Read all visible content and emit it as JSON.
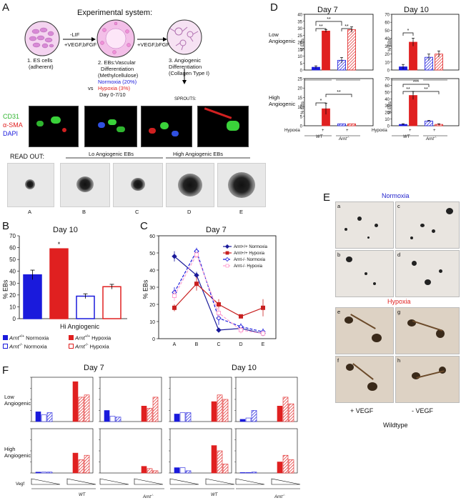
{
  "panels": {
    "a": "A",
    "b": "B",
    "c": "C",
    "d": "D",
    "e": "E",
    "f": "F"
  },
  "panel_a": {
    "title": "Experimental system:",
    "step1": [
      "1. ES cells",
      "(adherent)"
    ],
    "arrow1_top": "-LIF",
    "arrow1_bottom": "+VEGF,bFGF",
    "step2": [
      "2. EBs:Vascular",
      "Differentiation",
      "(Methylcellulose)"
    ],
    "normoxia": "Normoxia (20%)",
    "vs": "vs",
    "hypoxia": "Hypoxia (3%)",
    "day": "Day 0-7/10",
    "arrow2": "+VEGF,bFGF",
    "step3": [
      "3. Angiogenic",
      "Differentiation",
      "(Collagen Type I)"
    ],
    "sprouts": "SPROUTS:",
    "stain_cd31": "CD31",
    "stain_sma": "α-SMA",
    "stain_dapi": "DAPI",
    "readout": "READ OUT:",
    "lo_header": "Lo Angiogenic EBs",
    "hi_header": "High Angiogenic EBs",
    "eb_labels": [
      "A",
      "B",
      "C",
      "D",
      "E"
    ]
  },
  "panel_b": {
    "title": "Day 10",
    "ylabel": "% EBs",
    "xlabel": "Hi Angiogenic",
    "star": "*",
    "legend": [
      {
        "geno": "Arnt",
        "sup": "+/+",
        "cond": "Normoxia",
        "color": "#1a1adc",
        "fill": true
      },
      {
        "geno": "Arnt",
        "sup": "+/+",
        "cond": "Hypoxia",
        "color": "#e02020",
        "fill": true
      },
      {
        "geno": "Arnt",
        "sup": "-/-",
        "cond": "Normoxia",
        "color": "#1a1adc",
        "fill": false
      },
      {
        "geno": "Arnt",
        "sup": "-/-",
        "cond": "Hypoxia",
        "color": "#e02020",
        "fill": false
      }
    ]
  },
  "panel_c": {
    "title": "Day 7",
    "ylabel": "% EBs",
    "legend": [
      "Arnt+/+ Normoxia",
      "Arnt+/+ Hypoxia",
      "Arnt-/-  Normoxia",
      "Arnt-/-   Hypoxia"
    ]
  },
  "panel_d": {
    "day7": "Day 7",
    "day10": "Day 10",
    "row1": [
      "Low",
      "Angiogenic"
    ],
    "row2": [
      "High",
      "Angiogenic"
    ],
    "ylabel": "% EBs",
    "hypoxia": "Hypoxia",
    "plus": "+",
    "wt": "WT",
    "arnt": "Arnt",
    "arnt_sup": "-/-",
    "stars": [
      "**",
      "**",
      "**",
      "*",
      "*",
      "**",
      "*",
      "***",
      "**",
      "**"
    ]
  },
  "panel_e": {
    "normoxia": "Normoxia",
    "hypoxia": "Hypoxia",
    "photo_labels": [
      "a",
      "c",
      "b",
      "d",
      "e",
      "g",
      "f",
      "h"
    ],
    "plus_vegf": "+ VEGF",
    "minus_vegf": "- VEGF",
    "wildtype": "Wildtype"
  },
  "panel_f": {
    "day7": "Day 7",
    "day10": "Day 10",
    "row1": [
      "Low",
      "Angiogenic"
    ],
    "row2": [
      "High",
      "Angiogenic"
    ],
    "ylabel": "% EBs",
    "vegf": "Vegf",
    "wt": "WT",
    "arnt": "Arnt",
    "arnt_sup": "-/-"
  },
  "colors": {
    "blue": "#1a1adc",
    "red": "#e02020",
    "pink": "#ff9fd0",
    "green": "#3ad23a"
  },
  "chart_data": [
    {
      "id": "B",
      "type": "bar",
      "title": "Day 10",
      "xlabel": "Hi Angiogenic",
      "ylabel": "% EBs",
      "ylim": [
        0,
        70
      ],
      "yticks": [
        0,
        10,
        20,
        30,
        40,
        50,
        60,
        70
      ],
      "categories": [
        "Arnt+/+ Normoxia",
        "Arnt+/+ Hypoxia",
        "Arnt-/- Normoxia",
        "Arnt-/- Hypoxia"
      ],
      "values": [
        37,
        59,
        19,
        27
      ],
      "errors": [
        4,
        0,
        2,
        2
      ],
      "significance": [
        "",
        "*",
        "",
        ""
      ]
    },
    {
      "id": "C",
      "type": "line",
      "title": "Day 7",
      "ylabel": "% EBs",
      "ylim": [
        0,
        60
      ],
      "yticks": [
        0,
        10,
        20,
        30,
        40,
        50,
        60
      ],
      "x": [
        "A",
        "B",
        "C",
        "D",
        "E"
      ],
      "series": [
        {
          "name": "Arnt+/+ Normoxia",
          "values": [
            48,
            37,
            5,
            6,
            3
          ],
          "errors": [
            3,
            2,
            1,
            2,
            1
          ]
        },
        {
          "name": "Arnt+/+ Hypoxia",
          "values": [
            18,
            32,
            20,
            13,
            18
          ],
          "errors": [
            2,
            4,
            3,
            1,
            5
          ]
        },
        {
          "name": "Arnt-/-  Normoxia",
          "values": [
            27,
            51,
            12,
            7,
            4
          ],
          "errors": [
            3,
            2,
            4,
            2,
            2
          ]
        },
        {
          "name": "Arnt-/-   Hypoxia",
          "values": [
            25,
            49,
            15,
            5,
            3
          ],
          "errors": [
            3,
            2,
            3,
            2,
            1
          ]
        }
      ]
    },
    {
      "id": "D-day7-low",
      "type": "bar",
      "ylim": [
        0,
        40
      ],
      "yticks": [
        0,
        5,
        10,
        15,
        20,
        25,
        30,
        35,
        40
      ],
      "groups": [
        "WT",
        "Arnt-/-"
      ],
      "hypoxia": [
        "-",
        "+",
        "-",
        "+"
      ],
      "values": [
        2,
        28,
        7,
        29
      ],
      "errors": [
        1,
        1,
        2,
        2
      ]
    },
    {
      "id": "D-day10-low",
      "type": "bar",
      "ylim": [
        0,
        70
      ],
      "yticks": [
        0,
        10,
        20,
        30,
        40,
        50,
        60,
        70
      ],
      "groups": [
        "WT",
        "Arnt-/-"
      ],
      "hypoxia": [
        "-",
        "+",
        "-",
        "+"
      ],
      "values": [
        4,
        35,
        16,
        20
      ],
      "errors": [
        3,
        5,
        4,
        4
      ]
    },
    {
      "id": "D-day7-high",
      "type": "bar",
      "ylim": [
        0,
        25
      ],
      "yticks": [
        0,
        5,
        10,
        15,
        20,
        25
      ],
      "groups": [
        "WT",
        "Arnt-/-"
      ],
      "hypoxia": [
        "-",
        "+",
        "-",
        "+"
      ],
      "values": [
        0,
        9,
        1,
        1
      ],
      "errors": [
        0,
        3,
        0,
        0
      ]
    },
    {
      "id": "D-day10-high",
      "type": "bar",
      "ylim": [
        0,
        70
      ],
      "yticks": [
        0,
        10,
        20,
        30,
        40,
        50,
        60,
        70
      ],
      "groups": [
        "WT",
        "Arnt-/-"
      ],
      "hypoxia": [
        "-",
        "+",
        "-",
        "+"
      ],
      "values": [
        2,
        45,
        7,
        2
      ],
      "errors": [
        1,
        6,
        1,
        1
      ]
    }
  ]
}
